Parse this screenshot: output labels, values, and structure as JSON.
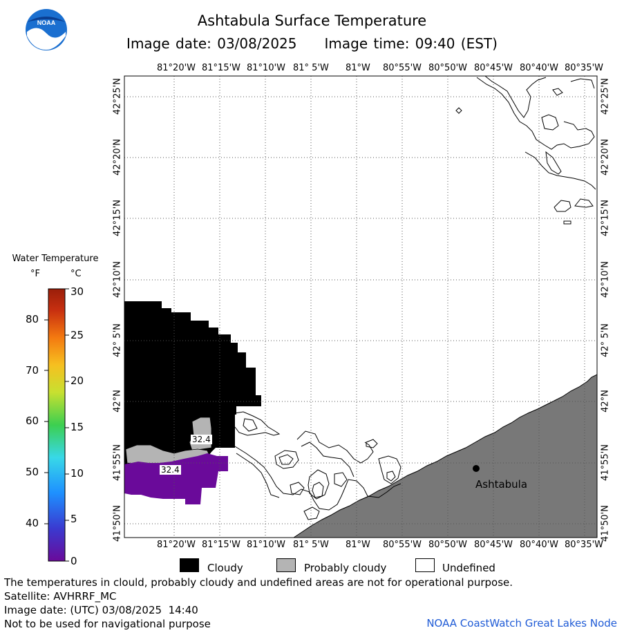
{
  "header": {
    "title": "Ashtabula Surface Temperature",
    "image_date": "Image date: 03/08/2025",
    "image_time": "Image time: 09:40 (EST)"
  },
  "map": {
    "longitude_ticks": [
      "81°20'W",
      "81°15'W",
      "81°10'W",
      "81° 5'W",
      "81°W",
      "80°55'W",
      "80°50'W",
      "80°45'W",
      "80°40'W",
      "80°35'W"
    ],
    "latitude_ticks": [
      "42°25'N",
      "42°20'N",
      "42°15'N",
      "42°10'N",
      "42° 5'N",
      "42°N",
      "41°55'N",
      "41°50'N"
    ],
    "temperature_labels": [
      "32.4",
      "32.4"
    ],
    "city_label": "Ashtabula",
    "colors": {
      "cloudy": "#000000",
      "probably_cloudy": "#b4b4b4",
      "land": "#787878",
      "water_0c": "#6a0a9a",
      "grid": "#555555"
    }
  },
  "legend": {
    "title": "Water Temperature",
    "unit_f": "°F",
    "unit_c": "°C",
    "fahrenheit_ticks": [
      "80",
      "70",
      "60",
      "50",
      "40"
    ],
    "celsius_ticks": [
      "30",
      "25",
      "20",
      "15",
      "10",
      "5",
      "0"
    ],
    "colorscale": [
      "#6a0a9a",
      "#3a3ad0",
      "#1e90ff",
      "#38d8e8",
      "#3ccf50",
      "#c8e030",
      "#f6c020",
      "#f47a10",
      "#c83010",
      "#9a1e0a"
    ]
  },
  "key": {
    "cloudy": "Cloudy",
    "probably_cloudy": "Probably cloudy",
    "undefined": "Undefined"
  },
  "footer": {
    "disclaimer": "The temperatures in clould, probably cloudy and undefined areas are not for operational purpose.",
    "satellite": "Satellite: AVHRRF_MC",
    "utc_date": "Image date: (UTC) 03/08/2025  14:40",
    "nav_warning": "Not to be used for navigational purpose",
    "credit": "NOAA CoastWatch Great Lakes Node"
  }
}
